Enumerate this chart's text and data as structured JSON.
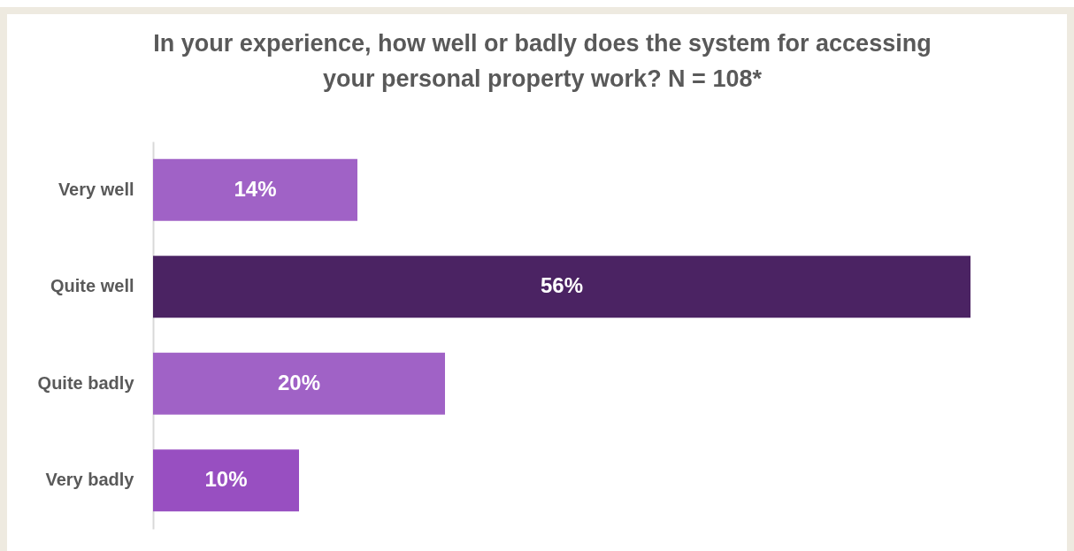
{
  "chart_data": {
    "type": "bar",
    "orientation": "horizontal",
    "title": "In your experience, how well or badly does the system for accessing\nyour personal property work? N =  108*",
    "categories": [
      "Very well",
      "Quite well",
      "Quite badly",
      "Very badly"
    ],
    "values": [
      14,
      56,
      20,
      10
    ],
    "colors": [
      "#a062c6",
      "#4b2363",
      "#a062c6",
      "#984fc1"
    ],
    "value_labels": [
      "14%",
      "56%",
      "20%",
      "10%"
    ],
    "grid": false
  }
}
